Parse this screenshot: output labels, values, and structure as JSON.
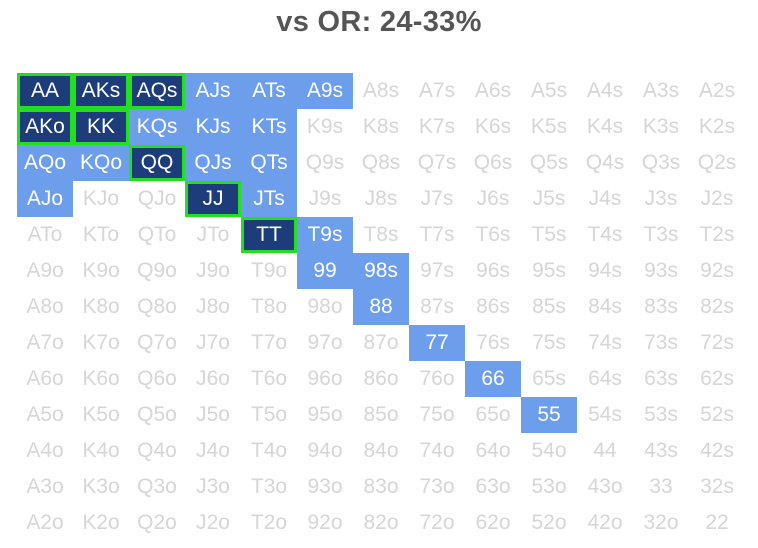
{
  "title": "vs OR: 24-33%",
  "colors": {
    "dark_fill": "#1c3d7a",
    "light_fill": "#6d9eeb",
    "highlight_border": "#22e01f",
    "inactive_text": "#d6d6d6",
    "title_text": "#555555"
  },
  "grid": {
    "rows": [
      [
        "AA",
        "AKs",
        "AQs",
        "AJs",
        "ATs",
        "A9s",
        "A8s",
        "A7s",
        "A6s",
        "A5s",
        "A4s",
        "A3s",
        "A2s"
      ],
      [
        "AKo",
        "KK",
        "KQs",
        "KJs",
        "KTs",
        "K9s",
        "K8s",
        "K7s",
        "K6s",
        "K5s",
        "K4s",
        "K3s",
        "K2s"
      ],
      [
        "AQo",
        "KQo",
        "QQ",
        "QJs",
        "QTs",
        "Q9s",
        "Q8s",
        "Q7s",
        "Q6s",
        "Q5s",
        "Q4s",
        "Q3s",
        "Q2s"
      ],
      [
        "AJo",
        "KJo",
        "QJo",
        "JJ",
        "JTs",
        "J9s",
        "J8s",
        "J7s",
        "J6s",
        "J5s",
        "J4s",
        "J3s",
        "J2s"
      ],
      [
        "ATo",
        "KTo",
        "QTo",
        "JTo",
        "TT",
        "T9s",
        "T8s",
        "T7s",
        "T6s",
        "T5s",
        "T4s",
        "T3s",
        "T2s"
      ],
      [
        "A9o",
        "K9o",
        "Q9o",
        "J9o",
        "T9o",
        "99",
        "98s",
        "97s",
        "96s",
        "95s",
        "94s",
        "93s",
        "92s"
      ],
      [
        "A8o",
        "K8o",
        "Q8o",
        "J8o",
        "T8o",
        "98o",
        "88",
        "87s",
        "86s",
        "85s",
        "84s",
        "83s",
        "82s"
      ],
      [
        "A7o",
        "K7o",
        "Q7o",
        "J7o",
        "T7o",
        "97o",
        "87o",
        "77",
        "76s",
        "75s",
        "74s",
        "73s",
        "72s"
      ],
      [
        "A6o",
        "K6o",
        "Q6o",
        "J6o",
        "T6o",
        "96o",
        "86o",
        "76o",
        "66",
        "65s",
        "64s",
        "63s",
        "62s"
      ],
      [
        "A5o",
        "K5o",
        "Q5o",
        "J5o",
        "T5o",
        "95o",
        "85o",
        "75o",
        "65o",
        "55",
        "54s",
        "53s",
        "52s"
      ],
      [
        "A4o",
        "K4o",
        "Q4o",
        "J4o",
        "T4o",
        "94o",
        "84o",
        "74o",
        "64o",
        "54o",
        "44",
        "43s",
        "42s"
      ],
      [
        "A3o",
        "K3o",
        "Q3o",
        "J3o",
        "T3o",
        "93o",
        "83o",
        "73o",
        "63o",
        "53o",
        "43o",
        "33",
        "32s"
      ],
      [
        "A2o",
        "K2o",
        "Q2o",
        "J2o",
        "T2o",
        "92o",
        "82o",
        "72o",
        "62o",
        "52o",
        "42o",
        "32o",
        "22"
      ]
    ],
    "dark_hands": [
      "AA",
      "AKs",
      "AQs",
      "AKo",
      "KK",
      "QQ",
      "JJ",
      "TT"
    ],
    "light_hands": [
      "AJs",
      "ATs",
      "A9s",
      "KQs",
      "KJs",
      "KTs",
      "AQo",
      "KQo",
      "QJs",
      "QTs",
      "AJo",
      "JTs",
      "T9s",
      "99",
      "98s",
      "88",
      "77",
      "66",
      "55"
    ],
    "outlined_hands": [
      "AA",
      "AKs",
      "AQs",
      "AKo",
      "KK",
      "QQ",
      "JJ",
      "TT"
    ]
  }
}
